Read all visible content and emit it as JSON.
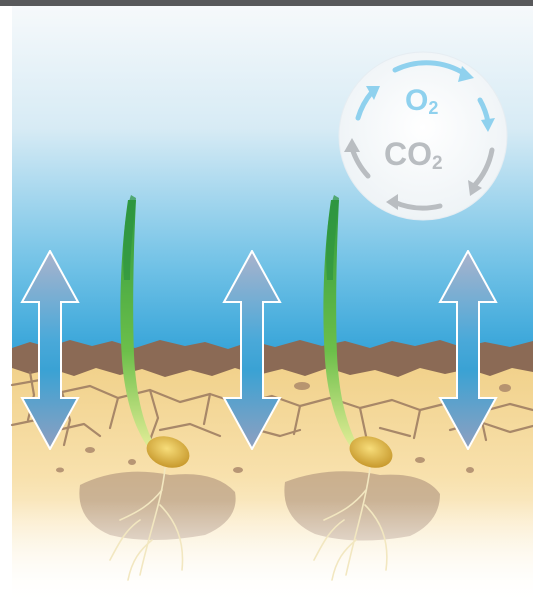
{
  "gas_cycle": {
    "top_label": "O",
    "top_subscript": "2",
    "bottom_label": "CO",
    "bottom_subscript": "2"
  },
  "colors": {
    "top_bar": "#58595b",
    "sky_top": "#f4f8fb",
    "sky_bottom": "#3fa9dc",
    "soil_light": "#f6dca0",
    "soil_crust": "#8b6a55",
    "arrow_top": "#9aa8c4",
    "arrow_mid": "#3aa6d8",
    "o2_color": "#8fd1ee",
    "co2_color": "#b9bdc1",
    "seedling_green": "#49a748",
    "seed_gold": "#d8b24a"
  },
  "icons": [
    "air-exchange-arrow",
    "seedling",
    "seed",
    "gas-cycle-circle"
  ]
}
